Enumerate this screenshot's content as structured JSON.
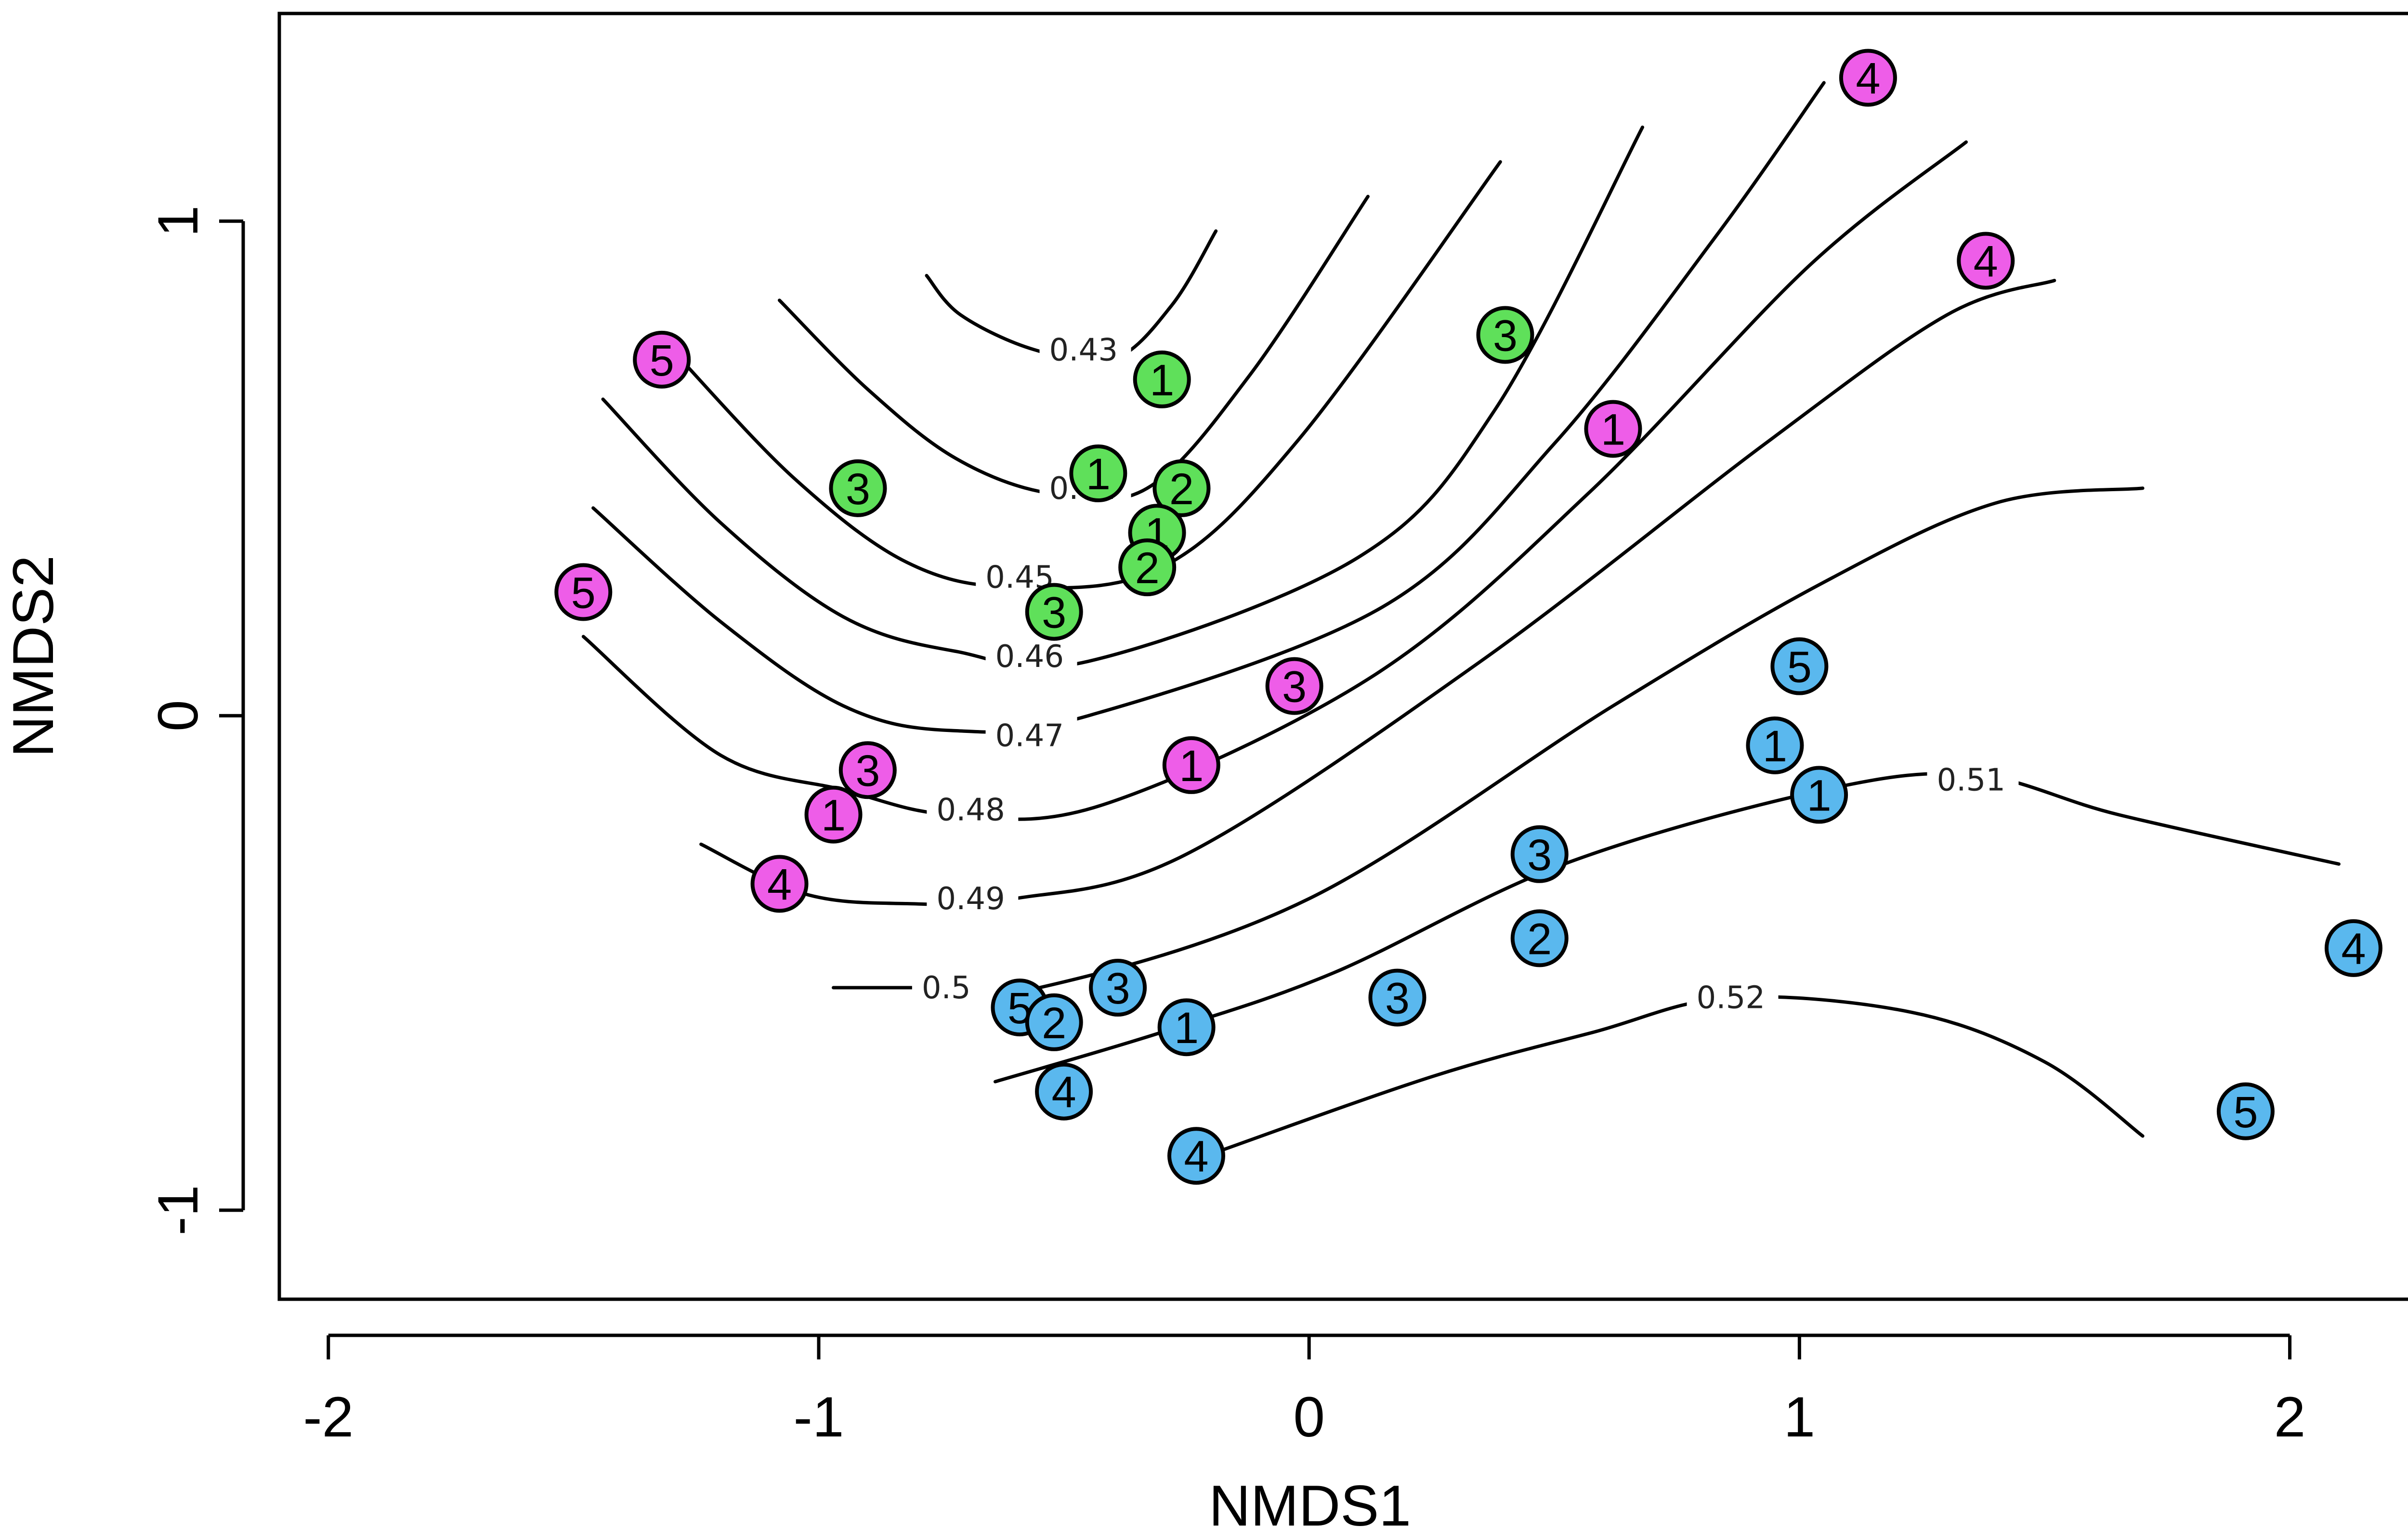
{
  "chart_data": {
    "type": "scatter",
    "title": "",
    "xlabel": "NMDS1",
    "ylabel": "NMDS2",
    "xlim": [
      -2.1,
      2.3
    ],
    "ylim": [
      -1.18,
      1.42
    ],
    "x_ticks": [
      -2,
      -1,
      0,
      1,
      2
    ],
    "x_tick_labels": [
      "-2",
      "-1",
      "0",
      "1",
      "2"
    ],
    "y_ticks": [
      -1,
      0,
      1
    ],
    "y_tick_labels": [
      "-1",
      "0",
      "1"
    ],
    "grid": false,
    "legend": "none",
    "groups": [
      {
        "color": "#5fe05a",
        "points": [
          {
            "x": -0.3,
            "y": 0.68,
            "label": "1"
          },
          {
            "x": -0.43,
            "y": 0.49,
            "label": "1"
          },
          {
            "x": -0.26,
            "y": 0.46,
            "label": "2"
          },
          {
            "x": -0.31,
            "y": 0.37,
            "label": "1"
          },
          {
            "x": -0.33,
            "y": 0.3,
            "label": "2"
          },
          {
            "x": -0.52,
            "y": 0.21,
            "label": "3"
          },
          {
            "x": -0.92,
            "y": 0.46,
            "label": "3"
          },
          {
            "x": 0.4,
            "y": 0.77,
            "label": "3"
          }
        ]
      },
      {
        "color": "#ee5de8",
        "points": [
          {
            "x": -1.32,
            "y": 0.72,
            "label": "5"
          },
          {
            "x": -1.48,
            "y": 0.25,
            "label": "5"
          },
          {
            "x": -0.9,
            "y": -0.11,
            "label": "3"
          },
          {
            "x": -0.97,
            "y": -0.2,
            "label": "1"
          },
          {
            "x": -1.08,
            "y": -0.34,
            "label": "4"
          },
          {
            "x": -0.24,
            "y": -0.1,
            "label": "1"
          },
          {
            "x": -0.03,
            "y": 0.06,
            "label": "3"
          },
          {
            "x": 0.62,
            "y": 0.58,
            "label": "1"
          },
          {
            "x": 1.14,
            "y": 1.29,
            "label": "4"
          },
          {
            "x": 1.38,
            "y": 0.92,
            "label": "4"
          }
        ]
      },
      {
        "color": "#5ab8ee",
        "points": [
          {
            "x": -0.59,
            "y": -0.59,
            "label": "5"
          },
          {
            "x": -0.52,
            "y": -0.62,
            "label": "2"
          },
          {
            "x": -0.39,
            "y": -0.55,
            "label": "3"
          },
          {
            "x": -0.25,
            "y": -0.63,
            "label": "1"
          },
          {
            "x": -0.5,
            "y": -0.76,
            "label": "4"
          },
          {
            "x": -0.23,
            "y": -0.89,
            "label": "4"
          },
          {
            "x": 0.18,
            "y": -0.57,
            "label": "3"
          },
          {
            "x": 0.47,
            "y": -0.45,
            "label": "2"
          },
          {
            "x": 0.47,
            "y": -0.28,
            "label": "3"
          },
          {
            "x": 0.95,
            "y": -0.06,
            "label": "1"
          },
          {
            "x": 1.04,
            "y": -0.16,
            "label": "1"
          },
          {
            "x": 1.0,
            "y": 0.1,
            "label": "5"
          },
          {
            "x": 2.13,
            "y": -0.47,
            "label": "4"
          },
          {
            "x": 1.91,
            "y": -0.8,
            "label": "5"
          }
        ]
      }
    ],
    "contours": [
      {
        "level": "0.43",
        "points": [
          [
            -0.78,
            0.89
          ],
          [
            -0.71,
            0.81
          ],
          [
            -0.56,
            0.74
          ],
          [
            -0.4,
            0.72
          ],
          [
            -0.28,
            0.83
          ],
          [
            -0.19,
            0.98
          ]
        ],
        "label_at": [
          -0.53,
          0.74
        ]
      },
      {
        "level": "0.44",
        "points": [
          [
            -1.08,
            0.84
          ],
          [
            -0.9,
            0.66
          ],
          [
            -0.72,
            0.52
          ],
          [
            -0.53,
            0.45
          ],
          [
            -0.33,
            0.46
          ],
          [
            -0.12,
            0.69
          ],
          [
            0.12,
            1.05
          ]
        ],
        "label_at": [
          -0.53,
          0.46
        ]
      },
      {
        "level": "0.45",
        "points": [
          [
            -1.29,
            0.73
          ],
          [
            -1.05,
            0.48
          ],
          [
            -0.82,
            0.31
          ],
          [
            -0.6,
            0.26
          ],
          [
            -0.3,
            0.3
          ],
          [
            -0.02,
            0.56
          ],
          [
            0.39,
            1.12
          ]
        ],
        "label_at": [
          -0.66,
          0.28
        ]
      },
      {
        "level": "0.46",
        "points": [
          [
            -1.44,
            0.64
          ],
          [
            -1.2,
            0.39
          ],
          [
            -0.95,
            0.2
          ],
          [
            -0.72,
            0.13
          ],
          [
            -0.45,
            0.11
          ],
          [
            0.1,
            0.32
          ],
          [
            0.38,
            0.62
          ],
          [
            0.68,
            1.19
          ]
        ],
        "label_at": [
          -0.64,
          0.12
        ]
      },
      {
        "level": "0.47",
        "points": [
          [
            -1.46,
            0.42
          ],
          [
            -1.2,
            0.19
          ],
          [
            -0.95,
            0.02
          ],
          [
            -0.73,
            -0.03
          ],
          [
            -0.45,
            0.0
          ],
          [
            0.15,
            0.22
          ],
          [
            0.5,
            0.55
          ],
          [
            0.83,
            0.97
          ],
          [
            1.05,
            1.28
          ]
        ],
        "label_at": [
          -0.64,
          -0.04
        ]
      },
      {
        "level": "0.48",
        "points": [
          [
            -1.48,
            0.16
          ],
          [
            -1.2,
            -0.08
          ],
          [
            -0.95,
            -0.15
          ],
          [
            -0.73,
            -0.2
          ],
          [
            -0.42,
            -0.18
          ],
          [
            0.13,
            0.08
          ],
          [
            0.57,
            0.45
          ],
          [
            1.02,
            0.91
          ],
          [
            1.34,
            1.16
          ]
        ],
        "label_at": [
          -0.76,
          -0.19
        ]
      },
      {
        "level": "0.49",
        "points": [
          [
            -1.24,
            -0.26
          ],
          [
            -1.03,
            -0.36
          ],
          [
            -0.82,
            -0.38
          ],
          [
            -0.6,
            -0.37
          ],
          [
            -0.25,
            -0.28
          ],
          [
            0.35,
            0.11
          ],
          [
            0.93,
            0.55
          ],
          [
            1.3,
            0.81
          ],
          [
            1.52,
            0.88
          ]
        ],
        "label_at": [
          -0.76,
          -0.37
        ]
      },
      {
        "level": "0.5",
        "points": [
          [
            -0.97,
            -0.55
          ],
          [
            -0.79,
            -0.55
          ],
          [
            -0.55,
            -0.55
          ],
          [
            0.0,
            -0.37
          ],
          [
            0.62,
            0.02
          ],
          [
            1.05,
            0.27
          ],
          [
            1.4,
            0.43
          ],
          [
            1.7,
            0.46
          ]
        ],
        "label_at": [
          -0.79,
          -0.55
        ]
      },
      {
        "level": "0.51",
        "points": [
          [
            -0.64,
            -0.74
          ],
          [
            -0.3,
            -0.64
          ],
          [
            0.05,
            -0.52
          ],
          [
            0.52,
            -0.3
          ],
          [
            1.05,
            -0.15
          ],
          [
            1.36,
            -0.12
          ],
          [
            1.65,
            -0.2
          ],
          [
            2.1,
            -0.3
          ]
        ],
        "label_at": [
          1.28,
          -0.13
        ]
      },
      {
        "level": "0.52",
        "points": [
          [
            -0.21,
            -0.89
          ],
          [
            0.25,
            -0.73
          ],
          [
            0.58,
            -0.64
          ],
          [
            0.86,
            -0.57
          ],
          [
            1.23,
            -0.6
          ],
          [
            1.5,
            -0.7
          ],
          [
            1.7,
            -0.85
          ]
        ],
        "label_at": [
          0.79,
          -0.57
        ]
      }
    ]
  }
}
